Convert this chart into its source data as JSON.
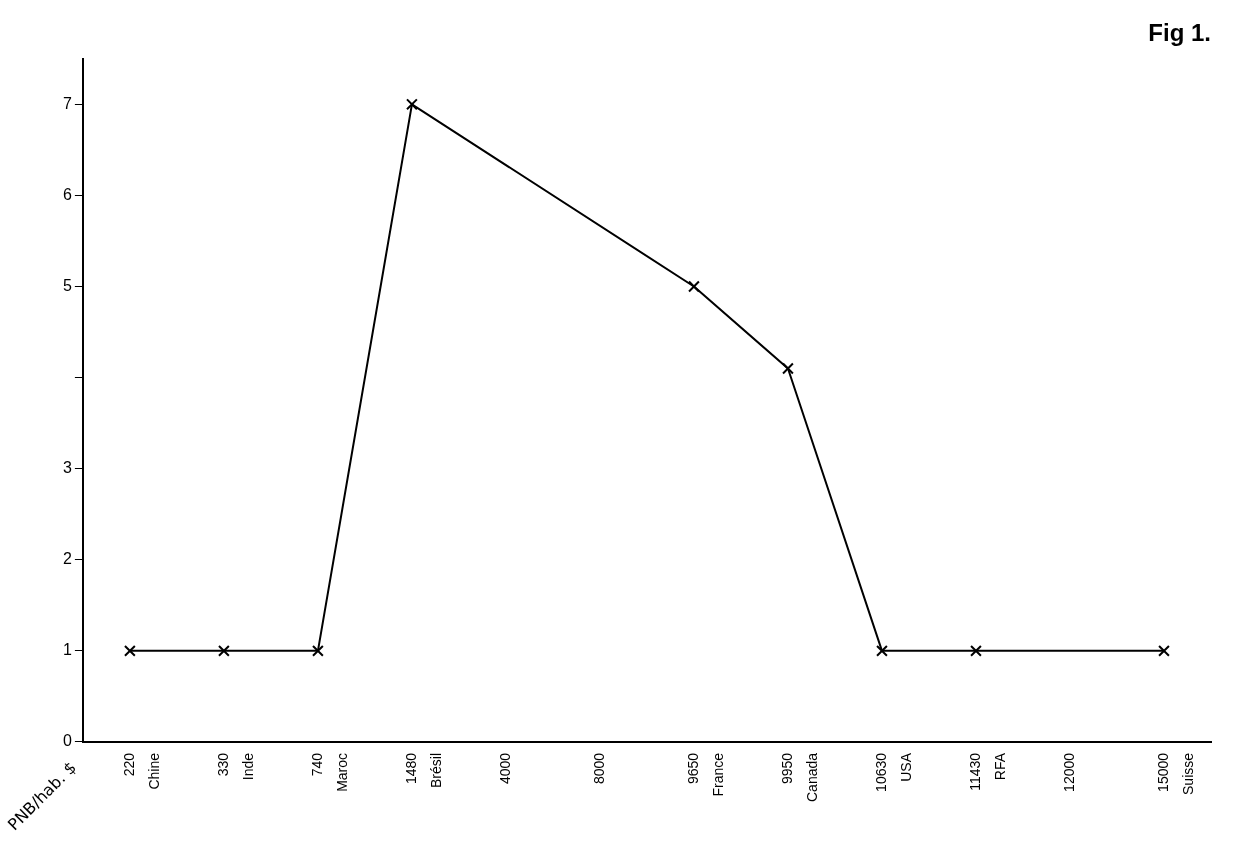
{
  "chart_data": {
    "type": "line",
    "title": "Fig 1.",
    "xlabel": "PNB/hab. $",
    "categories": [
      "220\nChine",
      "330\nInde",
      "740\nMaroc",
      "1480\nBrésil",
      "4000",
      "8000",
      "9650\nFrance",
      "9950\nCanada",
      "10630\nUSA",
      "11430\nRFA",
      "12000",
      "15000\nSuisse"
    ],
    "series": [
      {
        "color": "#000000",
        "values": [
          1,
          1,
          1,
          7,
          null,
          null,
          5,
          4.1,
          1,
          1,
          null,
          1
        ]
      }
    ],
    "ylim": [
      0,
      7.5
    ],
    "yticks": [
      0,
      1,
      2,
      3,
      {
        "value": 4,
        "label": null
      },
      5,
      6,
      7
    ],
    "grid": false,
    "legend": false,
    "marker": "cross",
    "line_style": "solid"
  }
}
